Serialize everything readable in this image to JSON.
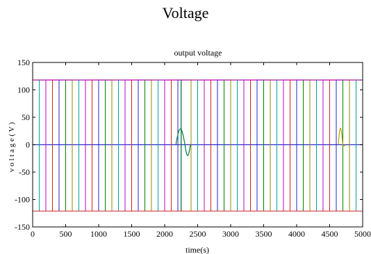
{
  "caption": "Voltage",
  "chart_data": {
    "type": "line",
    "title": "output voltage",
    "xlabel": "time(s)",
    "ylabel": "v o l t a g e ( V )",
    "xlim": [
      0,
      5000
    ],
    "ylim": [
      -150,
      150
    ],
    "xticks": [
      0,
      500,
      1000,
      1500,
      2000,
      2500,
      3000,
      3500,
      4000,
      4500,
      5000
    ],
    "yticks": [
      -150,
      -100,
      -50,
      0,
      50,
      100,
      150
    ],
    "grid": false,
    "legend": "none",
    "signal": {
      "amplitude_high": 118,
      "amplitude_low": -121,
      "baseline": 0,
      "switching_times": [
        0,
        100,
        200,
        300,
        400,
        500,
        600,
        700,
        800,
        900,
        1000,
        1100,
        1200,
        1300,
        1400,
        1500,
        1600,
        1700,
        1800,
        1900,
        2000,
        2100,
        2200,
        2250,
        2400,
        2500,
        2600,
        2700,
        2800,
        2900,
        3000,
        3100,
        3200,
        3300,
        3400,
        3500,
        3600,
        3700,
        3800,
        3900,
        4000,
        4100,
        4200,
        4300,
        4400,
        4500,
        4600,
        4700,
        4800,
        4900,
        5000
      ],
      "colors": [
        "#8a8a00",
        "#00a0a0",
        "#c000c0",
        "#d02020",
        "#2020d0",
        "#008000"
      ]
    },
    "transients": [
      {
        "start": 2170,
        "end": 2390,
        "peak": 29,
        "trough": -20,
        "color": "#008040"
      },
      {
        "start": 4630,
        "end": 4740,
        "peak": 30,
        "trough": -2,
        "color": "#b0a000"
      }
    ]
  }
}
